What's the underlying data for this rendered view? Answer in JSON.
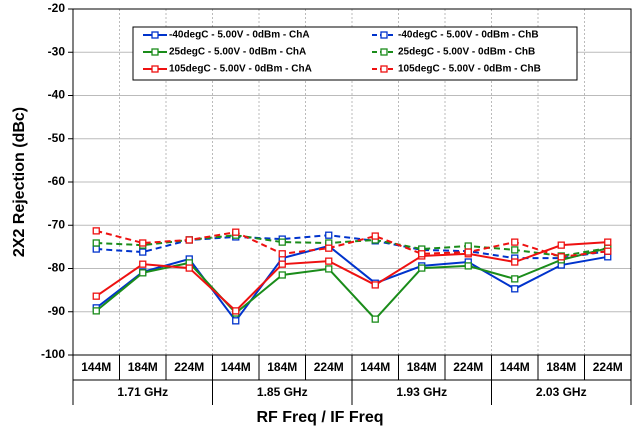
{
  "chart_data": {
    "type": "line",
    "y_label": "2X2 Rejection (dBc)",
    "x_label": "RF Freq / IF Freq",
    "groups": [
      {
        "label": "1.71 GHz",
        "categories": [
          "144M",
          "184M",
          "224M"
        ]
      },
      {
        "label": "1.85 GHz",
        "categories": [
          "144M",
          "184M",
          "224M"
        ]
      },
      {
        "label": "1.93 GHz",
        "categories": [
          "144M",
          "184M",
          "224M"
        ]
      },
      {
        "label": "2.03 GHz",
        "categories": [
          "144M",
          "184M",
          "224M"
        ]
      }
    ],
    "ylim": [
      -100,
      -20
    ],
    "yticks": [
      -100,
      -90,
      -80,
      -70,
      -60,
      -50,
      -40,
      -30,
      -20
    ],
    "grid": true,
    "legend": "top",
    "series": [
      {
        "name": "-40degC - 5.00V - 0dBm - ChA",
        "color": "#0033cc",
        "dash": false,
        "values": [
          -89.1,
          -80.8,
          -77.8,
          -92.1,
          -77.6,
          -74.8,
          -83.4,
          -79.4,
          -78.5,
          -84.7,
          -79.2,
          -77.3
        ]
      },
      {
        "name": "-40degC - 5.00V - 0dBm - ChB",
        "color": "#0033cc",
        "dash": true,
        "values": [
          -75.5,
          -76.2,
          -73.4,
          -72.7,
          -73.2,
          -72.3,
          -73.6,
          -75.7,
          -76.0,
          -77.6,
          -77.6,
          -76.0
        ]
      },
      {
        "name": "25degC - 5.00V - 0dBm - ChA",
        "color": "#1a8c1a",
        "dash": false,
        "values": [
          -89.8,
          -81.0,
          -78.7,
          -90.3,
          -81.5,
          -80.1,
          -91.7,
          -79.9,
          -79.4,
          -82.4,
          -78.0,
          -75.3
        ]
      },
      {
        "name": "25degC - 5.00V - 0dBm - ChB",
        "color": "#1a8c1a",
        "dash": true,
        "values": [
          -74.1,
          -74.6,
          -73.4,
          -72.3,
          -73.9,
          -74.1,
          -73.4,
          -75.5,
          -74.8,
          -75.7,
          -77.1,
          -75.3
        ]
      },
      {
        "name": "105degC - 5.00V - 0dBm - ChA",
        "color": "#ee1111",
        "dash": false,
        "values": [
          -86.4,
          -79.0,
          -79.9,
          -89.8,
          -79.0,
          -78.3,
          -83.8,
          -77.1,
          -76.6,
          -78.5,
          -74.6,
          -73.9
        ]
      },
      {
        "name": "105degC - 5.00V - 0dBm - ChB",
        "color": "#ee1111",
        "dash": true,
        "values": [
          -71.3,
          -74.1,
          -73.4,
          -71.6,
          -76.6,
          -75.3,
          -72.5,
          -76.6,
          -76.2,
          -73.9,
          -77.3,
          -76.0
        ]
      }
    ]
  }
}
